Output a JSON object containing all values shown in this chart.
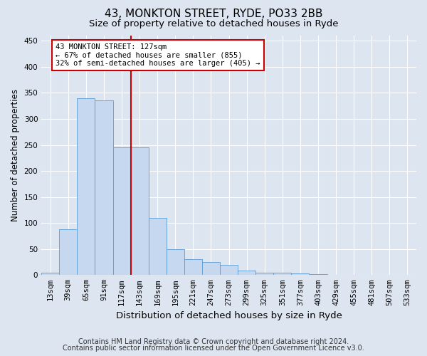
{
  "title": "43, MONKTON STREET, RYDE, PO33 2BB",
  "subtitle": "Size of property relative to detached houses in Ryde",
  "xlabel": "Distribution of detached houses by size in Ryde",
  "ylabel": "Number of detached properties",
  "categories": [
    "13sqm",
    "39sqm",
    "65sqm",
    "91sqm",
    "117sqm",
    "143sqm",
    "169sqm",
    "195sqm",
    "221sqm",
    "247sqm",
    "273sqm",
    "299sqm",
    "325sqm",
    "351sqm",
    "377sqm",
    "403sqm",
    "429sqm",
    "455sqm",
    "481sqm",
    "507sqm",
    "533sqm"
  ],
  "values": [
    5,
    88,
    340,
    335,
    245,
    245,
    110,
    50,
    30,
    25,
    20,
    9,
    5,
    4,
    3,
    2,
    1,
    1,
    0,
    0,
    0
  ],
  "bar_color": "#c5d8f0",
  "bar_edge_color": "#5b9bd5",
  "vline_x": 4.5,
  "vline_color": "#cc0000",
  "annotation_text": "43 MONKTON STREET: 127sqm\n← 67% of detached houses are smaller (855)\n32% of semi-detached houses are larger (405) →",
  "annotation_box_color": "white",
  "annotation_box_edge_color": "#cc0000",
  "ylim": [
    0,
    460
  ],
  "yticks": [
    0,
    50,
    100,
    150,
    200,
    250,
    300,
    350,
    400,
    450
  ],
  "footer_line1": "Contains HM Land Registry data © Crown copyright and database right 2024.",
  "footer_line2": "Contains public sector information licensed under the Open Government Licence v3.0.",
  "background_color": "#dde5f0",
  "plot_background_color": "#dde5f0",
  "title_fontsize": 11,
  "subtitle_fontsize": 9.5,
  "xlabel_fontsize": 9.5,
  "ylabel_fontsize": 8.5,
  "tick_fontsize": 7.5,
  "annot_fontsize": 7.5,
  "footer_fontsize": 7
}
